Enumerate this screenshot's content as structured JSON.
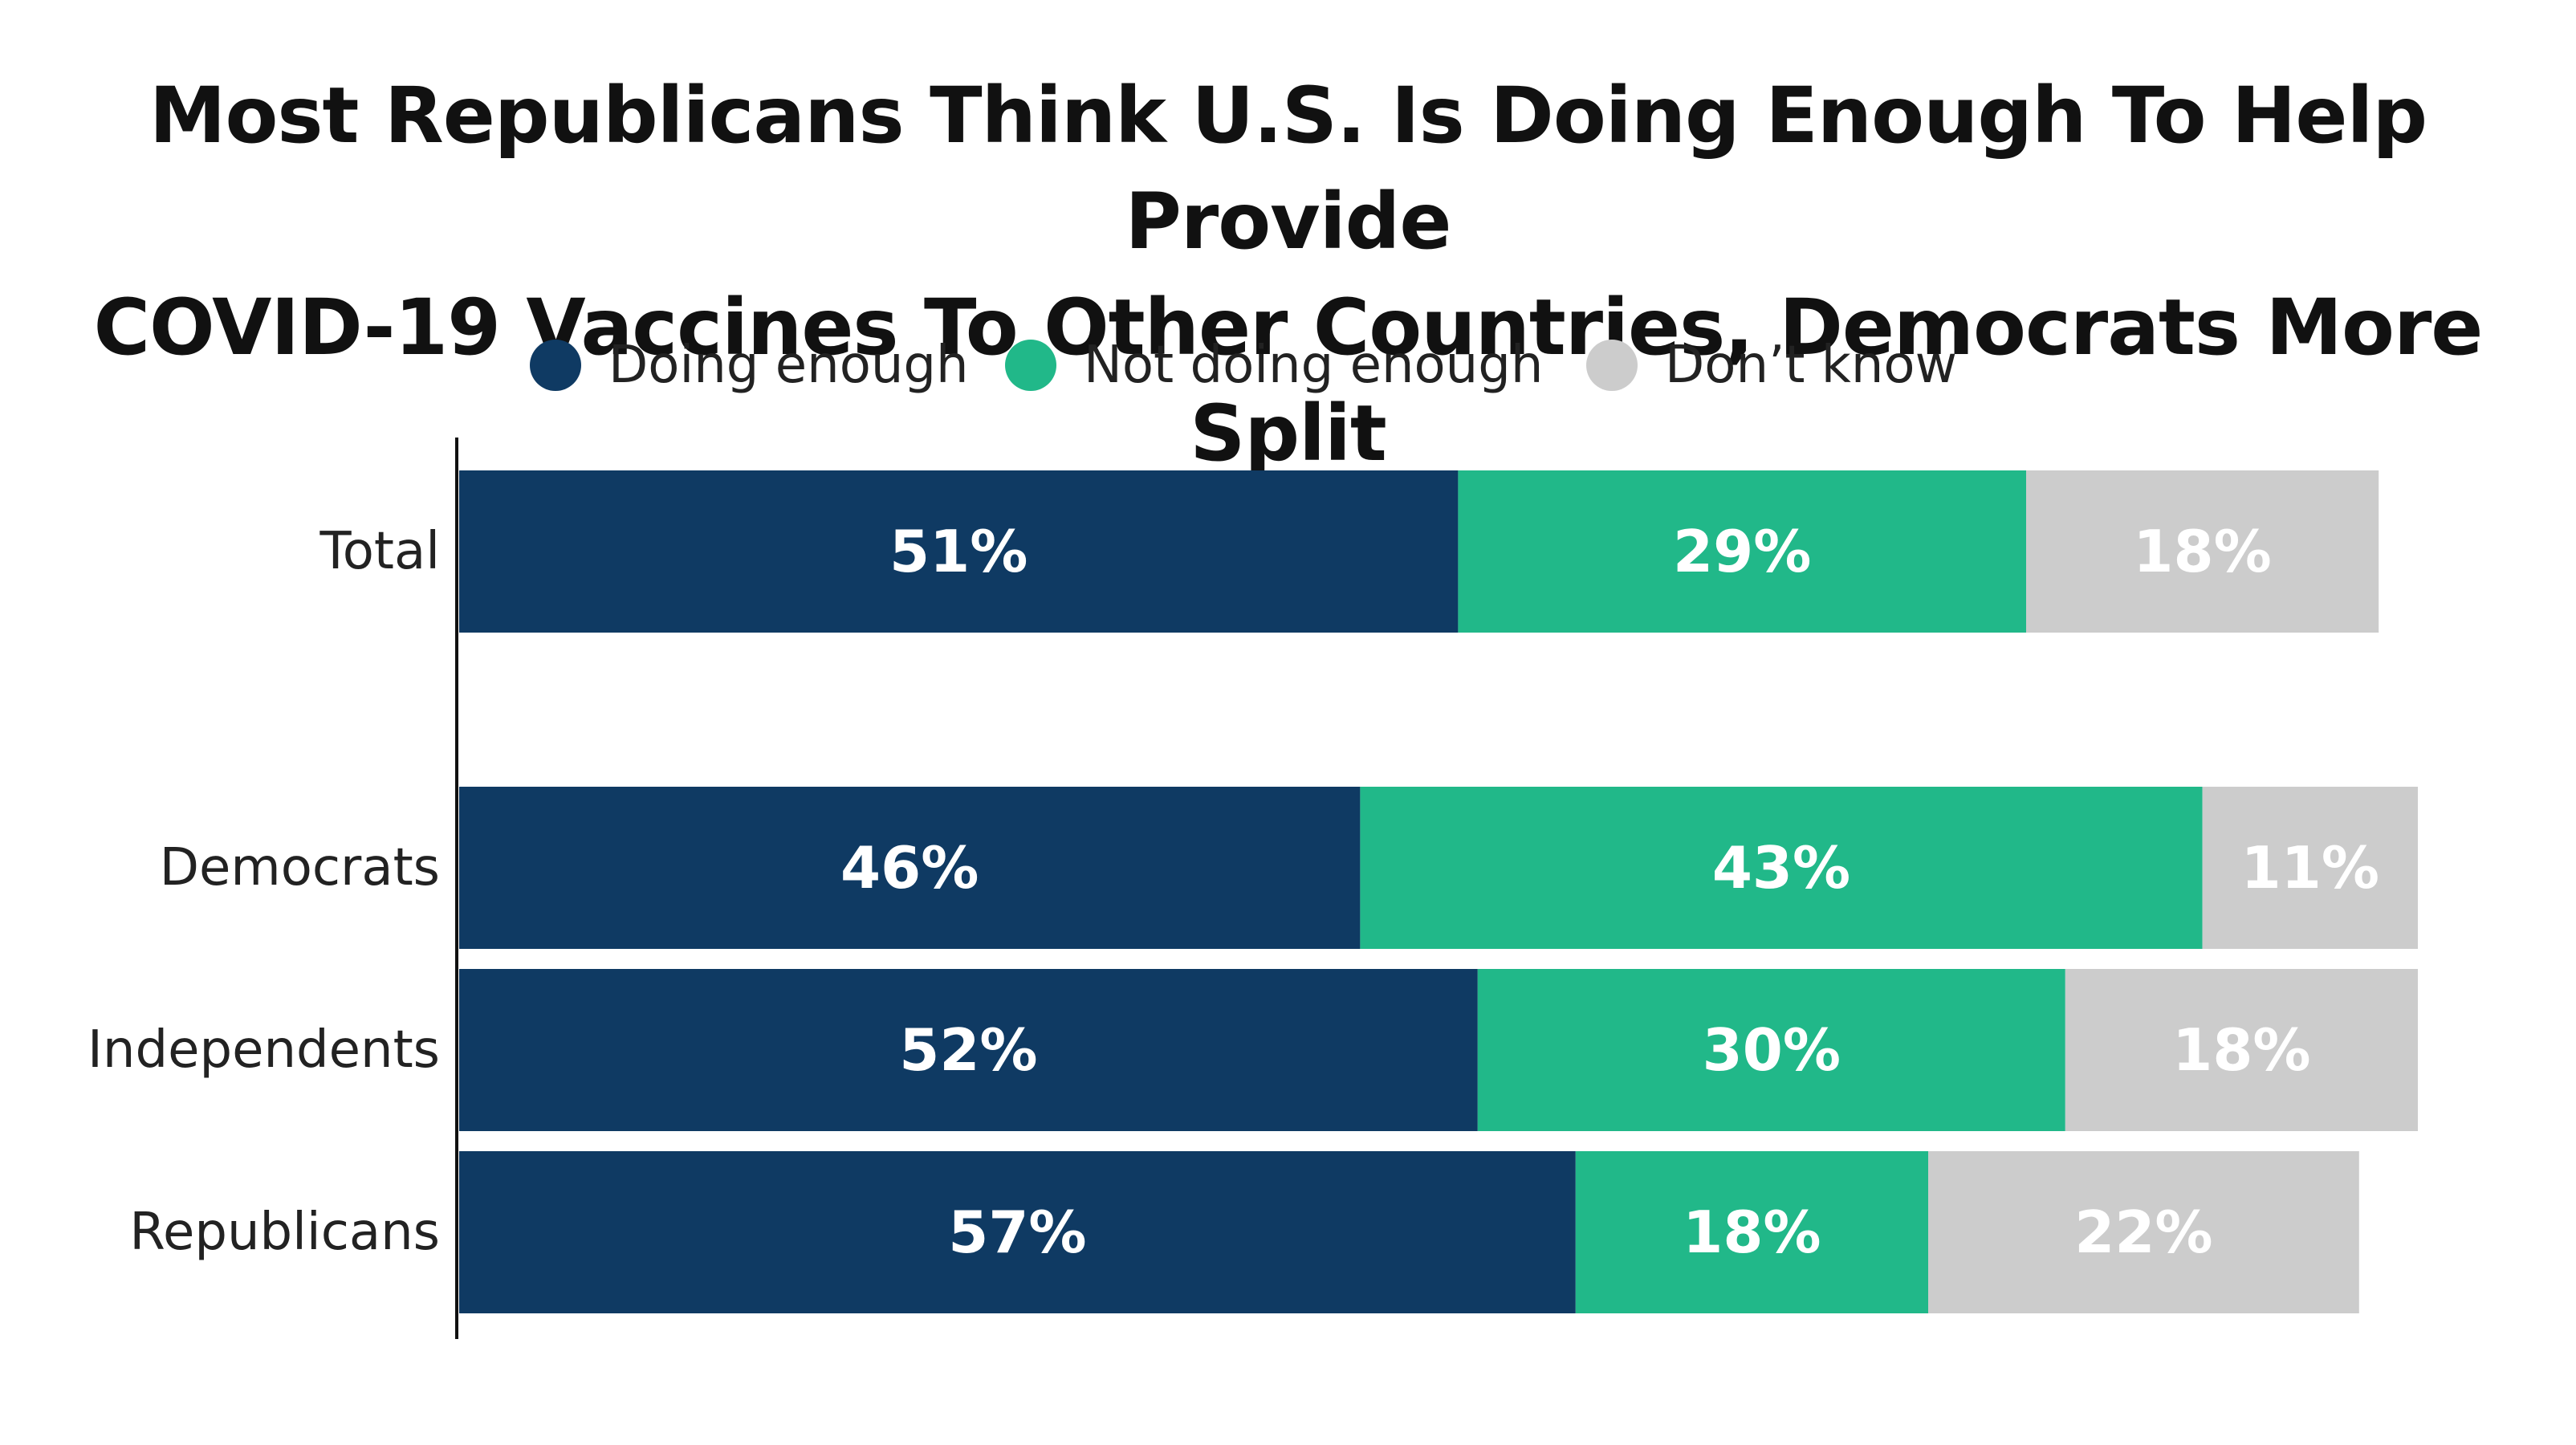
{
  "title_lines": [
    "Most Republicans Think U.S. Is Doing Enough To Help Provide",
    "COVID-19 Vaccines To Other Countries, Democrats More Split"
  ],
  "legend": [
    {
      "label": "Doing enough",
      "color": "#0f3a63"
    },
    {
      "label": "Not doing enough",
      "color": "#21b889"
    },
    {
      "label": "Don’t know",
      "color": "#cccccc"
    }
  ],
  "chart_data": {
    "type": "bar",
    "orientation": "horizontal",
    "stacked": true,
    "title": "Most Republicans Think U.S. Is Doing Enough To Help Provide COVID-19 Vaccines To Other Countries, Democrats More Split",
    "categories": [
      "Total",
      "Democrats",
      "Independents",
      "Republicans"
    ],
    "series": [
      {
        "name": "Doing enough",
        "color": "#0f3a63",
        "values": [
          51,
          46,
          52,
          57
        ],
        "labels": [
          "51%",
          "46%",
          "52%",
          "57%"
        ]
      },
      {
        "name": "Not doing enough",
        "color": "#21b889",
        "values": [
          29,
          43,
          30,
          18
        ],
        "labels": [
          "29%",
          "43%",
          "30%",
          "18%"
        ]
      },
      {
        "name": "Don’t know",
        "color": "#cccccc",
        "values": [
          18,
          11,
          18,
          22
        ],
        "labels": [
          "18%",
          "11%",
          "18%",
          "22%"
        ]
      }
    ],
    "xlim": [
      0,
      100
    ],
    "xlabel": "",
    "ylabel": "",
    "legend_position": "top"
  }
}
